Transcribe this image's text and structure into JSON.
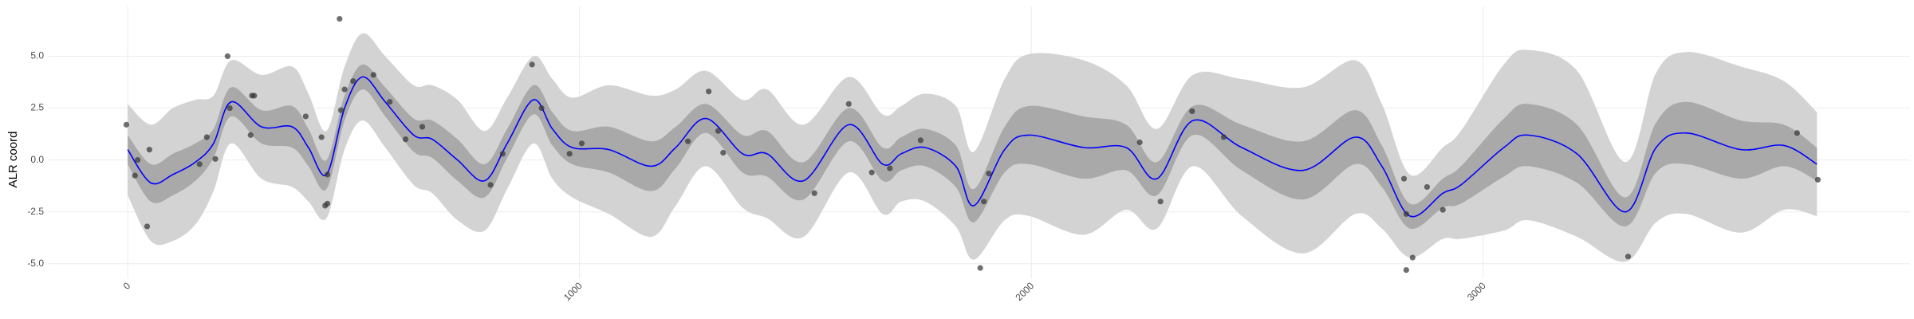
{
  "chart_data": {
    "type": "gp-band",
    "y_label": "ALR coord",
    "xlim": [
      -175,
      3945
    ],
    "ylim": [
      -5.7,
      7.4
    ],
    "xticks": [
      0,
      1000,
      2000,
      3000
    ],
    "yticks": [
      {
        "value": -5,
        "label": "-5.0"
      },
      -2.5,
      {
        "value": 0,
        "label": "0.0"
      },
      2.5,
      {
        "value": 5,
        "label": "5.0"
      }
    ],
    "grid": true,
    "outer_color": "#d3d3d3",
    "inner_color": "#a9a9a9",
    "line_color": "#0000ff",
    "point_color": "#333333",
    "x": [
      0,
      51,
      100,
      150,
      190,
      229,
      296,
      364,
      400,
      440,
      480,
      520,
      570,
      633,
      674,
      730,
      790,
      840,
      898,
      940,
      984,
      1065,
      1159,
      1213,
      1280,
      1361,
      1415,
      1496,
      1596,
      1671,
      1712,
      1765,
      1833,
      1873,
      1941,
      1995,
      2116,
      2210,
      2278,
      2358,
      2466,
      2601,
      2717,
      2776,
      2838,
      2911,
      2951,
      3046,
      3100,
      3208,
      3315,
      3383,
      3450,
      3571,
      3666,
      3739
    ],
    "mean": [
      0.5,
      -1.1,
      -0.7,
      -0.1,
      0.8,
      2.8,
      1.6,
      1.6,
      0.6,
      -0.7,
      2.5,
      4.0,
      2.8,
      1.2,
      1.0,
      0.0,
      -1.0,
      0.8,
      2.9,
      1.5,
      0.6,
      0.5,
      -0.3,
      0.6,
      2.0,
      0.3,
      0.3,
      -1.0,
      1.7,
      -0.2,
      0.3,
      0.6,
      -0.3,
      -2.2,
      0.5,
      1.2,
      0.6,
      0.6,
      -0.9,
      1.9,
      0.6,
      -0.5,
      1.1,
      -0.3,
      -2.7,
      -1.6,
      -1.2,
      0.6,
      1.2,
      0.3,
      -2.5,
      0.6,
      1.3,
      0.5,
      0.7,
      -0.2
    ],
    "inner_lower": [
      -0.2,
      -2.0,
      -1.7,
      -1.0,
      0.1,
      2.1,
      0.8,
      0.6,
      -0.3,
      -1.4,
      1.9,
      3.4,
      2.1,
      0.4,
      0.1,
      -1.0,
      -1.8,
      0.1,
      2.2,
      0.7,
      -0.2,
      -0.6,
      -1.5,
      -0.4,
      1.3,
      -0.6,
      -0.8,
      -1.9,
      0.9,
      -1.0,
      -0.5,
      -0.3,
      -1.3,
      -3.0,
      -0.6,
      -0.2,
      -0.9,
      -0.5,
      -1.7,
      1.2,
      -0.5,
      -1.9,
      -0.2,
      -1.3,
      -3.3,
      -2.3,
      -2.1,
      -0.8,
      -0.3,
      -1.1,
      -3.2,
      -0.6,
      -0.2,
      -0.9,
      -0.3,
      -1.0
    ],
    "inner_upper": [
      1.2,
      -0.2,
      0.3,
      0.8,
      1.5,
      3.5,
      2.4,
      2.6,
      1.5,
      0.0,
      3.1,
      4.6,
      3.5,
      2.0,
      1.9,
      1.0,
      -0.2,
      1.5,
      3.6,
      2.3,
      1.4,
      1.6,
      0.9,
      1.6,
      2.7,
      1.2,
      1.4,
      -0.1,
      2.5,
      0.6,
      1.1,
      1.5,
      0.7,
      -1.4,
      1.6,
      2.6,
      2.1,
      1.7,
      -0.1,
      2.6,
      1.7,
      0.9,
      2.4,
      0.7,
      -2.1,
      -0.9,
      -0.3,
      2.0,
      2.7,
      1.7,
      -1.8,
      1.8,
      2.8,
      1.9,
      1.7,
      0.6
    ],
    "outer_lower": [
      -1.7,
      -3.9,
      -3.9,
      -3.1,
      -1.5,
      0.8,
      -0.9,
      -1.3,
      -2.0,
      -2.8,
      0.5,
      1.9,
      0.6,
      -1.2,
      -1.6,
      -2.9,
      -3.4,
      -1.4,
      0.8,
      -0.9,
      -1.8,
      -2.6,
      -3.7,
      -2.2,
      -0.3,
      -2.3,
      -2.8,
      -3.7,
      -0.6,
      -2.6,
      -2.0,
      -2.0,
      -3.2,
      -4.8,
      -2.9,
      -2.7,
      -3.6,
      -2.4,
      -3.3,
      -0.3,
      -2.7,
      -4.5,
      -2.6,
      -3.3,
      -4.7,
      -3.8,
      -3.8,
      -3.4,
      -2.9,
      -3.7,
      -4.9,
      -3.0,
      -2.6,
      -3.5,
      -2.4,
      -2.7
    ],
    "outer_upper": [
      2.7,
      1.7,
      2.5,
      2.9,
      3.1,
      4.8,
      4.1,
      4.5,
      3.2,
      1.4,
      4.5,
      6.1,
      5.0,
      3.6,
      3.6,
      2.9,
      1.4,
      3.0,
      5.0,
      3.9,
      3.0,
      3.6,
      3.1,
      3.4,
      4.3,
      2.9,
      3.4,
      1.7,
      4.0,
      2.2,
      2.6,
      3.2,
      2.6,
      0.4,
      3.9,
      5.1,
      4.8,
      3.6,
      1.5,
      4.1,
      3.9,
      3.5,
      4.8,
      2.7,
      -0.7,
      0.6,
      1.4,
      4.6,
      5.3,
      4.3,
      -0.1,
      4.2,
      5.2,
      4.5,
      3.8,
      2.3
    ],
    "points": {
      "x": [
        -3,
        16,
        22,
        43,
        48,
        159,
        175,
        194,
        221,
        226,
        272,
        275,
        280,
        394,
        429,
        437,
        442,
        442,
        469,
        472,
        480,
        499,
        544,
        580,
        615,
        652,
        803,
        830,
        895,
        916,
        978,
        1005,
        1240,
        1286,
        1307,
        1318,
        1520,
        1596,
        1647,
        1687,
        1755,
        1887,
        1895,
        1906,
        2240,
        2286,
        2356,
        2426,
        2825,
        2830,
        2830,
        2844,
        2876,
        2911,
        3321,
        3695,
        3741
      ],
      "y": [
        1.7,
        -0.75,
        0.0,
        -3.2,
        0.5,
        -0.2,
        1.1,
        0.05,
        5.0,
        2.5,
        1.2,
        3.1,
        3.1,
        2.1,
        1.1,
        -2.2,
        -2.1,
        -0.7,
        6.8,
        2.4,
        3.4,
        3.8,
        4.1,
        2.8,
        1.0,
        1.6,
        -1.2,
        0.3,
        4.6,
        2.5,
        0.3,
        0.8,
        0.9,
        3.3,
        1.4,
        0.35,
        -1.6,
        2.7,
        -0.6,
        -0.4,
        0.95,
        -5.2,
        -2.0,
        -0.65,
        0.85,
        -2.0,
        2.35,
        1.1,
        -0.9,
        -2.6,
        -5.3,
        -4.7,
        -1.3,
        -2.4,
        -4.65,
        1.3,
        -0.95
      ]
    }
  }
}
